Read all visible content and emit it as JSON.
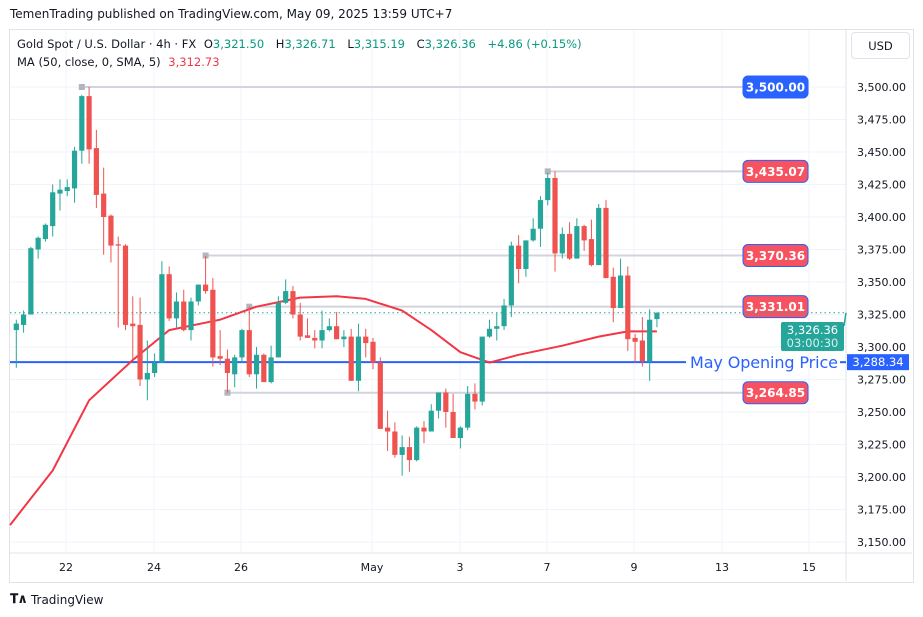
{
  "publisher_line": "TemenTrading published on TradingView.com, May 09, 2025 13:59 UTC+7",
  "legend": {
    "symbol": "Gold Spot / U.S. Dollar · 4h · FX",
    "open_label": "O",
    "open": "3,321.50",
    "high_label": "H",
    "high": "3,326.71",
    "low_label": "L",
    "low": "3,315.19",
    "close_label": "C",
    "close": "3,326.36",
    "change": "+4.86 (+0.15%)",
    "ma_label": "MA (50, close, 0, SMA, 5)",
    "ma_value": "3,312.73"
  },
  "currency_button": "USD",
  "footer": {
    "logo": "TV",
    "brand": "TradingView"
  },
  "colors": {
    "up": "#26a69a",
    "down": "#ef5350",
    "ma": "#f23645",
    "level_line": "#d1d4dc",
    "blue": "#2962ff",
    "red_label": "#f7525f"
  },
  "chart_data": {
    "type": "candlestick",
    "timeframe": "4h",
    "ylim": [
      3140,
      3515
    ],
    "y_ticks": [
      "3,150.00",
      "3,175.00",
      "3,200.00",
      "3,225.00",
      "3,250.00",
      "3,275.00",
      "3,300.00",
      "3,325.00",
      "3,350.00",
      "3,375.00",
      "3,400.00",
      "3,425.00",
      "3,450.00",
      "3,475.00",
      "3,500.00"
    ],
    "y_tick_values": [
      3150,
      3175,
      3200,
      3225,
      3250,
      3275,
      3300,
      3325,
      3350,
      3375,
      3400,
      3425,
      3450,
      3475,
      3500
    ],
    "x_ticks": [
      "22",
      "24",
      "26",
      "May",
      "3",
      "7",
      "9",
      "13",
      "15"
    ],
    "grid": true,
    "candles": [
      [
        3313,
        3321,
        3284,
        3318
      ],
      [
        3317,
        3328,
        3311,
        3325
      ],
      [
        3325,
        3377,
        3325,
        3376
      ],
      [
        3375,
        3385,
        3368,
        3384
      ],
      [
        3383,
        3395,
        3381,
        3394
      ],
      [
        3393,
        3425,
        3385,
        3419
      ],
      [
        3418,
        3429,
        3405,
        3421
      ],
      [
        3420,
        3429,
        3416,
        3423
      ],
      [
        3422,
        3454,
        3411,
        3451
      ],
      [
        3451,
        3494,
        3441,
        3493
      ],
      [
        3493,
        3500,
        3441,
        3452
      ],
      [
        3453,
        3467,
        3407,
        3417
      ],
      [
        3418,
        3438,
        3371,
        3400
      ],
      [
        3401,
        3402,
        3365,
        3378
      ],
      [
        3379,
        3385,
        3315,
        3378
      ],
      [
        3378,
        3379,
        3313,
        3317
      ],
      [
        3318,
        3339,
        3290,
        3316
      ],
      [
        3317,
        3338,
        3270,
        3275
      ],
      [
        3275,
        3305,
        3259,
        3280
      ],
      [
        3280,
        3295,
        3277,
        3288
      ],
      [
        3288,
        3366,
        3288,
        3356
      ],
      [
        3356,
        3362,
        3320,
        3322
      ],
      [
        3322,
        3342,
        3315,
        3335
      ],
      [
        3335,
        3344,
        3312,
        3313
      ],
      [
        3313,
        3338,
        3305,
        3335
      ],
      [
        3335,
        3348,
        3332,
        3348
      ],
      [
        3348,
        3370,
        3341,
        3343
      ],
      [
        3344,
        3353,
        3285,
        3292
      ],
      [
        3293,
        3313,
        3286,
        3291
      ],
      [
        3291,
        3298,
        3265,
        3280
      ],
      [
        3279,
        3294,
        3269,
        3292
      ],
      [
        3292,
        3314,
        3288,
        3313
      ],
      [
        3313,
        3331,
        3277,
        3279
      ],
      [
        3279,
        3300,
        3268,
        3294
      ],
      [
        3294,
        3295,
        3273,
        3273
      ],
      [
        3273,
        3301,
        3272,
        3292
      ],
      [
        3292,
        3339,
        3292,
        3334
      ],
      [
        3334,
        3352,
        3333,
        3343
      ],
      [
        3343,
        3347,
        3322,
        3325
      ],
      [
        3325,
        3334,
        3305,
        3308
      ],
      [
        3309,
        3322,
        3307,
        3307
      ],
      [
        3307,
        3313,
        3299,
        3305
      ],
      [
        3305,
        3328,
        3299,
        3313
      ],
      [
        3313,
        3322,
        3312,
        3316
      ],
      [
        3316,
        3327,
        3306,
        3306
      ],
      [
        3306,
        3313,
        3300,
        3308
      ],
      [
        3308,
        3314,
        3274,
        3274
      ],
      [
        3274,
        3318,
        3266,
        3308
      ],
      [
        3308,
        3314,
        3292,
        3303
      ],
      [
        3304,
        3307,
        3283,
        3288
      ],
      [
        3288,
        3292,
        3237,
        3237
      ],
      [
        3238,
        3251,
        3220,
        3235
      ],
      [
        3235,
        3242,
        3215,
        3217
      ],
      [
        3217,
        3232,
        3201,
        3223
      ],
      [
        3223,
        3231,
        3204,
        3213
      ],
      [
        3213,
        3239,
        3212,
        3238
      ],
      [
        3238,
        3243,
        3226,
        3235
      ],
      [
        3235,
        3256,
        3235,
        3251
      ],
      [
        3251,
        3265,
        3245,
        3265
      ],
      [
        3265,
        3268,
        3238,
        3250
      ],
      [
        3250,
        3264,
        3230,
        3230
      ],
      [
        3230,
        3239,
        3222,
        3238
      ],
      [
        3238,
        3270,
        3236,
        3264
      ],
      [
        3264,
        3272,
        3252,
        3258
      ],
      [
        3258,
        3308,
        3255,
        3308
      ],
      [
        3308,
        3321,
        3307,
        3314
      ],
      [
        3314,
        3326,
        3305,
        3316
      ],
      [
        3316,
        3337,
        3313,
        3332
      ],
      [
        3332,
        3381,
        3323,
        3378
      ],
      [
        3378,
        3386,
        3349,
        3360
      ],
      [
        3360,
        3382,
        3354,
        3382
      ],
      [
        3382,
        3399,
        3381,
        3391
      ],
      [
        3391,
        3416,
        3377,
        3413
      ],
      [
        3413,
        3434,
        3409,
        3430
      ],
      [
        3430,
        3435.07,
        3358,
        3372
      ],
      [
        3372,
        3392,
        3368,
        3387
      ],
      [
        3387,
        3396,
        3367,
        3368
      ],
      [
        3368,
        3399,
        3368,
        3393
      ],
      [
        3393,
        3394,
        3374,
        3382
      ],
      [
        3383,
        3398,
        3362,
        3363
      ],
      [
        3363,
        3410,
        3363,
        3407
      ],
      [
        3407,
        3413,
        3353,
        3353
      ],
      [
        3354,
        3361,
        3319,
        3330
      ],
      [
        3330,
        3368,
        3330,
        3355
      ],
      [
        3355,
        3362,
        3297,
        3306
      ],
      [
        3307,
        3310,
        3288,
        3304
      ],
      [
        3305,
        3323,
        3285,
        3289
      ],
      [
        3289,
        3329,
        3274,
        3321
      ],
      [
        3321.5,
        3326.71,
        3315.19,
        3326.36
      ]
    ],
    "ma": {
      "name": "MA (50, close, 0, SMA, 5)",
      "knots": [
        [
          -1,
          3163
        ],
        [
          5,
          3205
        ],
        [
          10,
          3259
        ],
        [
          16,
          3290
        ],
        [
          21,
          3313
        ],
        [
          28,
          3321
        ],
        [
          33,
          3331
        ],
        [
          39,
          3338
        ],
        [
          44,
          3339
        ],
        [
          48,
          3337
        ],
        [
          53,
          3328
        ],
        [
          57,
          3313
        ],
        [
          61,
          3296
        ],
        [
          65,
          3288
        ],
        [
          69,
          3294
        ],
        [
          75,
          3301
        ],
        [
          80,
          3308
        ],
        [
          84,
          3312
        ],
        [
          88,
          3312
        ]
      ]
    },
    "levels": [
      {
        "value": 3500.0,
        "label": "3,500.00",
        "color": "#2962ff",
        "from_candle": 9
      },
      {
        "value": 3435.07,
        "label": "3,435.07",
        "color": "#f7525f",
        "from_candle": 73
      },
      {
        "value": 3370.36,
        "label": "3,370.36",
        "color": "#f7525f",
        "from_candle": 26
      },
      {
        "value": 3331.01,
        "label": "3,331.01",
        "color": "#f7525f",
        "from_candle": 32
      },
      {
        "value": 3264.85,
        "label": "3,264.85",
        "color": "#f7525f",
        "from_candle": 29
      }
    ],
    "opening_line": {
      "value": 3288.34,
      "label": "May Opening Price",
      "axis_label": "3,288.34"
    },
    "last_price": {
      "value": 3326.36,
      "label": "3,326.36",
      "countdown": "03:00:30"
    }
  }
}
